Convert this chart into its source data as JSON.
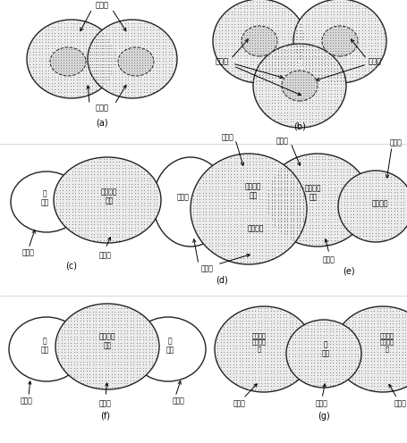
{
  "bg_color": "#ffffff",
  "panels": {
    "a_label": "(a)",
    "b_label": "(b)",
    "c_label": "(c)",
    "d_label": "(d)",
    "e_label": "(e)",
    "f_label": "(f)",
    "g_label": "(g)"
  },
  "font_size_label": 7,
  "font_size_text": 6,
  "font_size_small": 5.5,
  "circle_lw": 1.0,
  "arrow_lw": 0.7
}
